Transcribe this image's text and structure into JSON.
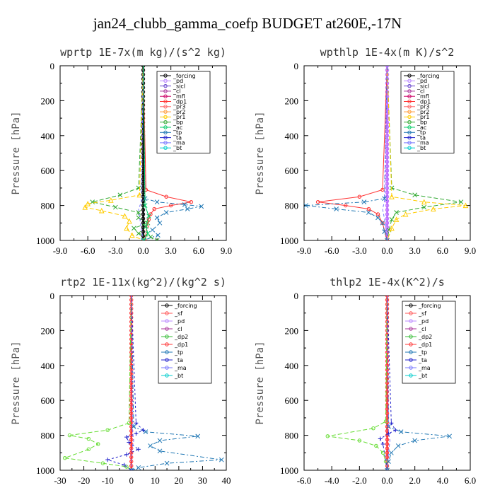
{
  "title": "jan24_clubb_gamma_coefp  BUDGET at260E,-17N",
  "chart_data": [
    {
      "type": "line",
      "title": "wprtp  1E-7x(m kg)/(s^2 kg)",
      "ylabel": "Pressure [hPa]",
      "xlim": [
        -9,
        9
      ],
      "ylim": [
        1000,
        0
      ],
      "xticks": [
        "-9.0",
        "-6.0",
        "-3.0",
        "0.0",
        "3.0",
        "6.0",
        "9.0"
      ],
      "yticks": [
        "0",
        "200",
        "400",
        "600",
        "800",
        "1000"
      ],
      "legend": [
        "_forcing",
        "_pd",
        "_sicl",
        "_cl",
        "_mfl",
        "_dp1",
        "_pr3",
        "_pr2",
        "_pr1",
        "_bp",
        "_ac",
        "_tp",
        "_ta",
        "_ma",
        "_bt"
      ],
      "series": [
        {
          "name": "_forcing",
          "color": "#000000",
          "dash": "",
          "marker": "circle",
          "x": [
            0,
            0,
            0,
            0,
            0,
            0,
            0,
            0,
            0,
            0,
            0
          ],
          "y": [
            0,
            100,
            200,
            300,
            400,
            500,
            600,
            700,
            800,
            900,
            1000
          ]
        },
        {
          "name": "_bp",
          "color": "#33aa33",
          "dash": "6,3",
          "marker": "x",
          "x": [
            0,
            -0.5,
            -2.5,
            -5.5,
            -3,
            -0.5,
            -0.5,
            0.5,
            -1.0,
            -0.5,
            0.8,
            1.5
          ],
          "y": [
            0,
            700,
            740,
            780,
            810,
            840,
            870,
            900,
            930,
            960,
            980,
            1000
          ]
        },
        {
          "name": "_pr1",
          "color": "#ffcc00",
          "dash": "6,3",
          "marker": "tri",
          "x": [
            0,
            -0.4,
            -3.5,
            -6.0,
            -6.3,
            -4.5,
            -2.0,
            -1.5,
            -1.8,
            -1.2,
            0
          ],
          "y": [
            0,
            740,
            770,
            790,
            810,
            830,
            860,
            890,
            930,
            970,
            1000
          ]
        },
        {
          "name": "_dp1",
          "color": "#ff3333",
          "dash": "",
          "marker": "circle",
          "x": [
            0,
            0.3,
            2.5,
            5.2,
            3.0,
            1.2,
            0.8,
            0.6,
            0.4,
            0.2
          ],
          "y": [
            0,
            710,
            750,
            780,
            800,
            820,
            850,
            880,
            920,
            1000
          ]
        },
        {
          "name": "_tp",
          "color": "#1f77b4",
          "dash": "6,3,2,3",
          "marker": "x",
          "x": [
            0,
            0.2,
            1.5,
            4.5,
            6.3,
            4.8,
            2.5,
            1.5,
            1.8,
            1.0,
            1.6,
            0
          ],
          "y": [
            0,
            760,
            780,
            795,
            805,
            820,
            840,
            870,
            900,
            940,
            970,
            1000
          ]
        },
        {
          "name": "_ma",
          "color": "#7777ff",
          "dash": "4,3",
          "marker": "",
          "x": [
            0,
            -0.2,
            -0.5,
            -0.3,
            0
          ],
          "y": [
            0,
            780,
            820,
            900,
            1000
          ]
        },
        {
          "name": "_ac",
          "color": "#00cc66",
          "dash": "",
          "marker": "x",
          "x": [
            0,
            0.2,
            0.6,
            0.3,
            0.5,
            0.1
          ],
          "y": [
            0,
            800,
            860,
            920,
            960,
            1000
          ]
        }
      ]
    },
    {
      "type": "line",
      "title": "wpthlp  1E-4x(m K)/s^2",
      "ylabel": "Pressure [hPa]",
      "xlim": [
        -9,
        9
      ],
      "ylim": [
        1000,
        0
      ],
      "xticks": [
        "-9.0",
        "-6.0",
        "-3.0",
        "0.0",
        "3.0",
        "6.0",
        "9.0"
      ],
      "yticks": [
        "0",
        "200",
        "400",
        "600",
        "800",
        "1000"
      ],
      "legend": [
        "_forcing",
        "_pd",
        "_sicl",
        "_cl",
        "_mfl",
        "_dp1",
        "_pr3",
        "_pr2",
        "_pr1",
        "_bp",
        "_ac",
        "_tp",
        "_ta",
        "_ma",
        "_bt"
      ],
      "series": [
        {
          "name": "_forcing",
          "color": "#bb66ff",
          "dash": "",
          "marker": "circle",
          "x": [
            0,
            0,
            0,
            0,
            0,
            0,
            0,
            0,
            0,
            0,
            0
          ],
          "y": [
            0,
            100,
            200,
            300,
            400,
            500,
            600,
            700,
            800,
            900,
            1000
          ]
        },
        {
          "name": "_bp",
          "color": "#33aa33",
          "dash": "6,3",
          "marker": "x",
          "x": [
            0,
            0.5,
            3.0,
            8.0,
            4.0,
            1.0,
            0.5,
            0.2,
            0
          ],
          "y": [
            0,
            700,
            740,
            780,
            810,
            840,
            880,
            940,
            1000
          ]
        },
        {
          "name": "_pr1",
          "color": "#ffcc00",
          "dash": "6,3",
          "marker": "tri",
          "x": [
            0,
            0.5,
            4.0,
            8.5,
            5.0,
            2.0,
            1.0,
            0.5,
            0
          ],
          "y": [
            0,
            750,
            780,
            800,
            820,
            850,
            880,
            930,
            1000
          ]
        },
        {
          "name": "_dp1",
          "color": "#ff3333",
          "dash": "",
          "marker": "circle",
          "x": [
            0,
            -0.5,
            -3.0,
            -7.5,
            -4.5,
            -2.0,
            -1.0,
            -0.5,
            0
          ],
          "y": [
            0,
            710,
            750,
            780,
            800,
            820,
            850,
            900,
            1000
          ]
        },
        {
          "name": "_tp",
          "color": "#1f77b4",
          "dash": "6,3,2,3",
          "marker": "x",
          "x": [
            0,
            -0.3,
            -2.5,
            -8.8,
            -5.5,
            -2.0,
            -1.0,
            -0.5,
            -0.3,
            0
          ],
          "y": [
            0,
            760,
            780,
            800,
            820,
            840,
            870,
            900,
            950,
            1000
          ]
        },
        {
          "name": "_ma",
          "color": "#7777ff",
          "dash": "4,3",
          "marker": "",
          "x": [
            0,
            -0.3,
            -0.5,
            -0.2,
            0
          ],
          "y": [
            0,
            780,
            820,
            900,
            1000
          ]
        }
      ]
    },
    {
      "type": "line",
      "title": "rtp2  1E-11x(kg^2)/(kg^2 s)",
      "ylabel": "Pressure [hPa]",
      "xlim": [
        -30,
        40
      ],
      "ylim": [
        1000,
        0
      ],
      "xticks": [
        "-30",
        "-20",
        "-10",
        "0",
        "10",
        "20",
        "30",
        "40"
      ],
      "yticks": [
        "0",
        "200",
        "400",
        "600",
        "800",
        "1000"
      ],
      "legend": [
        "_forcing",
        "_sf",
        "_pd",
        "_cl",
        "_dp2",
        "_dp1",
        "_tp",
        "_ta",
        "_ma",
        "_bt"
      ],
      "series": [
        {
          "name": "_forcing",
          "color": "#ff3333",
          "dash": "",
          "marker": "circle",
          "x": [
            0,
            0,
            0,
            0,
            0,
            0,
            0,
            0,
            0,
            0,
            0
          ],
          "y": [
            0,
            100,
            200,
            300,
            400,
            500,
            600,
            700,
            800,
            900,
            1000
          ]
        },
        {
          "name": "_dp1",
          "color": "#66dd33",
          "dash": "6,3",
          "marker": "circle",
          "x": [
            0,
            -1,
            -10,
            -26,
            -18,
            -14,
            -18,
            -28,
            -12,
            -2,
            0
          ],
          "y": [
            0,
            730,
            770,
            800,
            820,
            850,
            880,
            930,
            960,
            980,
            1000
          ]
        },
        {
          "name": "_tp",
          "color": "#1f77b4",
          "dash": "6,3,2,3",
          "marker": "x",
          "x": [
            0,
            1,
            6,
            28,
            12,
            8,
            12,
            38,
            15,
            3,
            0
          ],
          "y": [
            0,
            750,
            780,
            805,
            830,
            860,
            890,
            940,
            960,
            985,
            1000
          ]
        },
        {
          "name": "_ta",
          "color": "#2222cc",
          "dash": "3,3",
          "marker": "plus",
          "x": [
            0,
            2,
            5,
            2,
            -2,
            -1,
            3,
            -2,
            -10,
            -3,
            0
          ],
          "y": [
            0,
            730,
            770,
            790,
            810,
            840,
            880,
            910,
            940,
            970,
            1000
          ]
        },
        {
          "name": "_ma",
          "color": "#7777ff",
          "dash": "4,3",
          "marker": "",
          "x": [
            0,
            0.5,
            1,
            0,
            0
          ],
          "y": [
            0,
            780,
            830,
            900,
            1000
          ]
        }
      ]
    },
    {
      "type": "line",
      "title": "thlp2  1E-4x(K^2)/s",
      "ylabel": "Pressure [hPa]",
      "xlim": [
        -6,
        6
      ],
      "ylim": [
        1000,
        0
      ],
      "xticks": [
        "-6.0",
        "-4.0",
        "-2.0",
        "0.0",
        "2.0",
        "4.0",
        "6.0"
      ],
      "yticks": [
        "0",
        "200",
        "400",
        "600",
        "800",
        "1000"
      ],
      "legend": [
        "_forcing",
        "_sf",
        "_pd",
        "_cl",
        "_dp2",
        "_dp1",
        "_tp",
        "_ta",
        "_ma",
        "_bt"
      ],
      "series": [
        {
          "name": "_forcing",
          "color": "#ff3333",
          "dash": "",
          "marker": "circle",
          "x": [
            0,
            0,
            0,
            0,
            0,
            0,
            0,
            0,
            0,
            0,
            0
          ],
          "y": [
            0,
            100,
            200,
            300,
            400,
            500,
            600,
            700,
            800,
            900,
            1000
          ]
        },
        {
          "name": "_dp1",
          "color": "#66dd33",
          "dash": "6,3",
          "marker": "circle",
          "x": [
            0,
            -0.1,
            -1.0,
            -4.3,
            -2.0,
            -0.8,
            -0.3,
            -0.1,
            0
          ],
          "y": [
            0,
            720,
            760,
            805,
            830,
            860,
            900,
            950,
            1000
          ]
        },
        {
          "name": "_tp",
          "color": "#1f77b4",
          "dash": "6,3,2,3",
          "marker": "x",
          "x": [
            0,
            0.1,
            1.0,
            4.5,
            2.0,
            0.8,
            0.3,
            0.1,
            0
          ],
          "y": [
            0,
            750,
            780,
            805,
            830,
            860,
            900,
            950,
            1000
          ]
        },
        {
          "name": "_ta",
          "color": "#2222cc",
          "dash": "3,3",
          "marker": "plus",
          "x": [
            0,
            0.3,
            0.6,
            0.1,
            -0.5,
            -0.3,
            0
          ],
          "y": [
            0,
            730,
            770,
            790,
            820,
            850,
            1000
          ]
        },
        {
          "name": "_ma",
          "color": "#7777ff",
          "dash": "4,3",
          "marker": "",
          "x": [
            0,
            0.1,
            0.2,
            0.1,
            0
          ],
          "y": [
            0,
            780,
            830,
            900,
            1000
          ]
        }
      ]
    }
  ]
}
